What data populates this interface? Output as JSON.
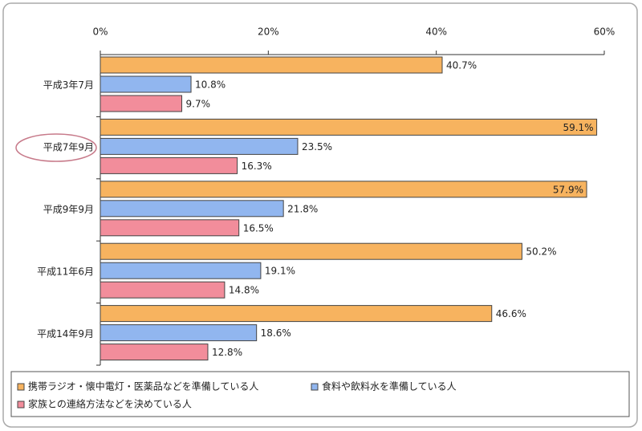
{
  "chart_data": {
    "type": "bar",
    "orientation": "horizontal",
    "categories": [
      "平成3年7月",
      "平成7年9月",
      "平成9年9月",
      "平成11年6月",
      "平成14年9月"
    ],
    "series": [
      {
        "name": "携帯ラジオ・懐中電灯・医薬品などを準備している人",
        "color": "#f7b35f",
        "values": [
          40.7,
          59.1,
          57.9,
          50.2,
          46.6
        ],
        "value_labels": [
          "40.7%",
          "59.1%",
          "57.9%",
          "50.2%",
          "46.6%"
        ]
      },
      {
        "name": "食料や飲料水を準備している人",
        "color": "#91b6ef",
        "values": [
          10.8,
          23.5,
          21.8,
          19.1,
          18.6
        ],
        "value_labels": [
          "10.8%",
          "23.5%",
          "21.8%",
          "19.1%",
          "18.6%"
        ]
      },
      {
        "name": "家族との連絡方法などを決めている人",
        "color": "#f28d9b",
        "values": [
          9.7,
          16.3,
          16.5,
          14.8,
          12.8
        ],
        "value_labels": [
          "9.7%",
          "16.3%",
          "16.5%",
          "14.8%",
          "12.8%"
        ]
      }
    ],
    "xlim": [
      0,
      60
    ],
    "xticks": [
      {
        "value": 0,
        "label": "0%"
      },
      {
        "value": 20,
        "label": "20%"
      },
      {
        "value": 40,
        "label": "40%"
      },
      {
        "value": 60,
        "label": "60%"
      }
    ]
  }
}
